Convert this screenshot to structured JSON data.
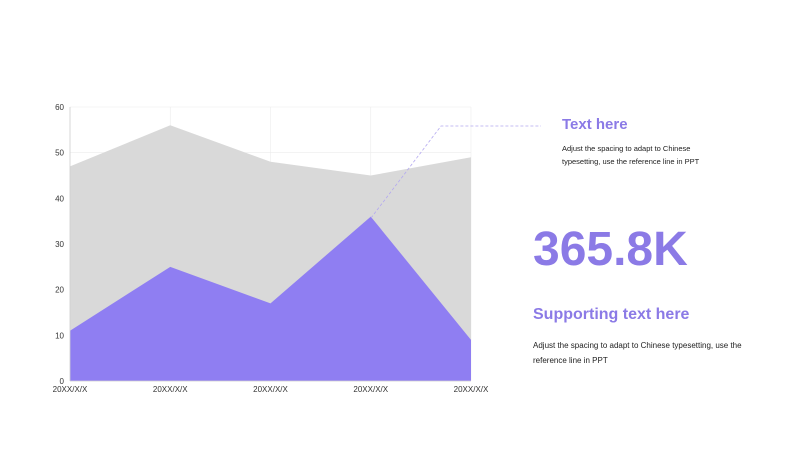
{
  "chart_data": {
    "type": "area",
    "categories": [
      "20XX/X/X",
      "20XX/X/X",
      "20XX/X/X",
      "20XX/X/X",
      "20XX/X/X"
    ],
    "series": [
      {
        "values": [
          47,
          56,
          48,
          45,
          49
        ],
        "color": "#d9d9d9"
      },
      {
        "values": [
          11,
          25,
          17,
          36,
          9
        ],
        "color": "#8f7ef2"
      }
    ],
    "yticks": [
      "0",
      "10",
      "20",
      "30",
      "40",
      "50",
      "60"
    ],
    "ylim": [
      0,
      60
    ],
    "grid": true,
    "legend": "none",
    "title": "",
    "xlabel": "",
    "ylabel": ""
  },
  "callout": {
    "title": "Text here",
    "body": "Adjust the spacing to adapt to Chinese typesetting, use the reference line in PPT"
  },
  "kpi": {
    "value": "365.8K"
  },
  "supporting": {
    "title": "Supporting text here",
    "body": "Adjust the spacing to adapt to Chinese typesetting, use the reference line in PPT"
  },
  "colors": {
    "accent": "#8b7ae6",
    "leader_line": "#b3a8f0"
  }
}
